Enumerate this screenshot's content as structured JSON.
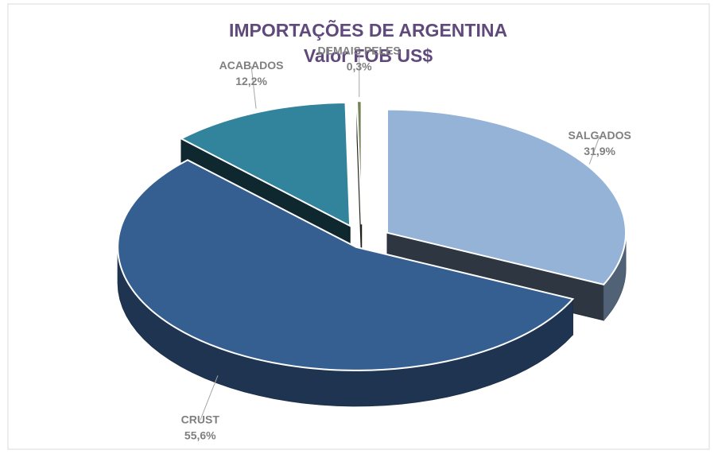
{
  "chart_data": {
    "type": "pie3d",
    "title": "IMPORTAÇÕES DE ARGENTINA",
    "subtitle": "Valor FOB US$",
    "categories": [
      "SALGADOS",
      "CRUST",
      "ACABADOS",
      "DEMAIS PELES"
    ],
    "values": [
      31.9,
      55.6,
      12.2,
      0.3
    ],
    "value_labels": [
      "31,9%",
      "55,6%",
      "12,2%",
      "0,3%"
    ],
    "colors": [
      "#95b3d7",
      "#365f91",
      "#31849b",
      "#76805a"
    ]
  }
}
